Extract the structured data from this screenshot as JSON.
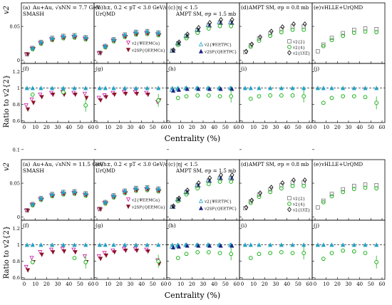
{
  "figure": {
    "panel_labels_top": [
      "(a)",
      "(b)",
      "(c)",
      "(d)",
      "(e)"
    ],
    "panel_labels_bottom": [
      "(f)",
      "(g)",
      "(h)",
      "(i)",
      "(j)"
    ],
    "model_labels": [
      "SMASH",
      "UrQMD",
      "AMPT SM, σp = 1.5 mb",
      "AMPT SM, σp = 0.8 mb",
      "vHLLE+UrQMD"
    ],
    "cut_labels": [
      "",
      "h±, 0.2 < pT < 3.0 GeV/c",
      "|η| < 1.5",
      "",
      ""
    ],
    "xlabel": "Centrality (%)",
    "ylabel_top": "v2",
    "ylabel_bottom": "Ratio to v2{2}",
    "xticks": [
      "0",
      "10",
      "20",
      "30",
      "40",
      "50",
      "60"
    ],
    "yticks_top": [
      "0",
      "0.05",
      "0.1"
    ],
    "yticks_bottom": [
      "0.6",
      "0.8",
      "1",
      "1.2"
    ]
  },
  "legend": {
    "b": [
      "v2{ΨEP,MCa}",
      "v2SP{QEP,MCa}"
    ],
    "c": [
      "v2{ΨEP,TPC}",
      "v2SP{QEP,TPC}"
    ],
    "d": [
      "v2{2}",
      "v2{4}",
      "v2{LYZ}"
    ]
  },
  "colors": {
    "cyan": "#1fa4c6",
    "navy": "#1a237e",
    "green": "#1fb31f",
    "magenta": "#c8169b",
    "darkred": "#8b1324",
    "grey": "#777777",
    "black": "#000000"
  },
  "chart_data": [
    {
      "block": "top",
      "energy_label": "Au+Au, √sNN = 7.7 GeV",
      "type": "scatter",
      "xlim": [
        0,
        60
      ],
      "v2_ylim": [
        -0.005,
        0.085
      ],
      "ratio_ylim": [
        0.58,
        1.3
      ],
      "centrality": [
        2.5,
        7.5,
        15,
        25,
        35,
        45,
        55
      ],
      "v2": [
        {
          "model": "SMASH",
          "v2_2": [
            0.009,
            0.018,
            0.027,
            0.033,
            0.036,
            0.037,
            0.034
          ]
        },
        {
          "model": "UrQMD",
          "v2_2": [
            0.011,
            0.021,
            0.031,
            0.038,
            0.042,
            0.043,
            0.041
          ]
        },
        {
          "model": "AMPT SM 1.5 mb",
          "v2_2": [
            0.014,
            0.025,
            0.036,
            0.045,
            0.052,
            0.056,
            0.056
          ]
        },
        {
          "model": "AMPT SM 0.8 mb",
          "v2_2": [
            0.012,
            0.022,
            0.032,
            0.04,
            0.046,
            0.05,
            0.05
          ]
        },
        {
          "model": "vHLLE+UrQMD",
          "v2_2": [
            0.013,
            0.023,
            0.033,
            0.04,
            0.045,
            0.047,
            0.046
          ]
        }
      ],
      "ratios": [
        {
          "model": "SMASH",
          "ep_mca": [
            0.79,
            0.86,
            0.92,
            0.94,
            0.95,
            0.94,
            0.93
          ],
          "sp_mca": [
            0.74,
            0.82,
            0.89,
            0.92,
            0.92,
            0.92,
            0.88
          ],
          "v2_4": [
            null,
            0.92,
            null,
            null,
            0.95,
            null,
            0.79
          ]
        },
        {
          "model": "UrQMD",
          "ep_mca": [
            0.88,
            0.91,
            0.94,
            0.95,
            0.95,
            0.94,
            0.83
          ],
          "sp_mca": [
            0.85,
            0.89,
            0.92,
            0.93,
            0.93,
            0.92,
            0.85
          ],
          "v2_4": [
            null,
            null,
            null,
            null,
            null,
            null,
            0.85
          ]
        },
        {
          "model": "AMPT SM 1.5 mb",
          "ep_tpc": [
            0.98,
            0.99,
            1.0,
            1.0,
            1.0,
            1.0,
            1.0
          ],
          "sp_tpc": [
            0.97,
            0.98,
            0.99,
            0.99,
            0.99,
            0.99,
            0.99
          ],
          "v2_4": [
            null,
            0.88,
            0.9,
            0.91,
            0.91,
            0.9,
            0.9
          ]
        },
        {
          "model": "AMPT SM 0.8 mb",
          "v2_2": [
            1,
            1,
            1,
            1,
            1,
            1,
            1
          ],
          "v2_4": [
            null,
            0.87,
            0.9,
            0.91,
            0.91,
            0.91,
            0.9
          ]
        },
        {
          "model": "vHLLE+UrQMD",
          "v2_2": [
            1,
            1,
            1,
            1,
            1,
            1,
            1
          ],
          "v2_4": [
            null,
            0.82,
            0.88,
            0.9,
            0.9,
            0.89,
            0.82
          ]
        }
      ]
    },
    {
      "block": "bottom",
      "energy_label": "Au+Au, √sNN = 11.5 GeV",
      "type": "scatter",
      "xlim": [
        0,
        60
      ],
      "v2_ylim": [
        -0.005,
        0.085
      ],
      "ratio_ylim": [
        0.58,
        1.3
      ],
      "centrality": [
        2.5,
        7.5,
        15,
        25,
        35,
        45,
        55
      ],
      "v2": [
        {
          "model": "SMASH",
          "v2_2": [
            0.01,
            0.019,
            0.028,
            0.034,
            0.037,
            0.038,
            0.035
          ]
        },
        {
          "model": "UrQMD",
          "v2_2": [
            0.012,
            0.022,
            0.032,
            0.039,
            0.043,
            0.044,
            0.042
          ]
        },
        {
          "model": "AMPT SM 1.5 mb",
          "v2_2": [
            0.015,
            0.026,
            0.037,
            0.047,
            0.054,
            0.058,
            0.058
          ]
        },
        {
          "model": "AMPT SM 0.8 mb",
          "v2_2": [
            0.013,
            0.023,
            0.033,
            0.041,
            0.047,
            0.051,
            0.051
          ]
        },
        {
          "model": "vHLLE+UrQMD",
          "v2_2": [
            0.014,
            0.024,
            0.034,
            0.041,
            0.046,
            0.048,
            0.047
          ]
        }
      ],
      "ratios": [
        {
          "model": "SMASH",
          "ep_mca": [
            0.73,
            0.84,
            0.91,
            0.94,
            0.95,
            0.94,
            0.86
          ],
          "sp_mca": [
            0.69,
            0.79,
            0.88,
            0.91,
            0.92,
            0.91,
            0.79
          ],
          "v2_4": [
            null,
            0.79,
            null,
            null,
            null,
            0.84,
            0.79
          ]
        },
        {
          "model": "UrQMD",
          "ep_mca": [
            0.86,
            0.9,
            0.93,
            0.95,
            0.95,
            0.94,
            0.81
          ],
          "sp_mca": [
            0.83,
            0.87,
            0.91,
            0.93,
            0.93,
            0.92,
            0.77
          ],
          "v2_4": [
            null,
            null,
            null,
            null,
            null,
            null,
            0.8
          ]
        },
        {
          "model": "AMPT SM 1.5 mb",
          "ep_tpc": [
            0.98,
            0.99,
            1.0,
            1.0,
            1.0,
            1.0,
            1.0
          ],
          "sp_tpc": [
            0.97,
            0.98,
            0.99,
            0.99,
            0.99,
            0.99,
            0.99
          ],
          "v2_4": [
            null,
            0.84,
            0.89,
            0.91,
            0.91,
            0.9,
            0.89
          ]
        },
        {
          "model": "AMPT SM 0.8 mb",
          "v2_2": [
            1,
            1,
            1,
            1,
            1,
            1,
            1
          ],
          "v2_4": [
            null,
            0.84,
            0.89,
            0.9,
            0.91,
            0.9,
            0.9
          ]
        },
        {
          "model": "vHLLE+UrQMD",
          "v2_2": [
            1,
            1,
            1,
            1,
            1,
            1,
            1
          ],
          "v2_4": [
            null,
            0.83,
            0.9,
            0.93,
            0.92,
            0.9,
            0.79
          ]
        }
      ]
    }
  ]
}
